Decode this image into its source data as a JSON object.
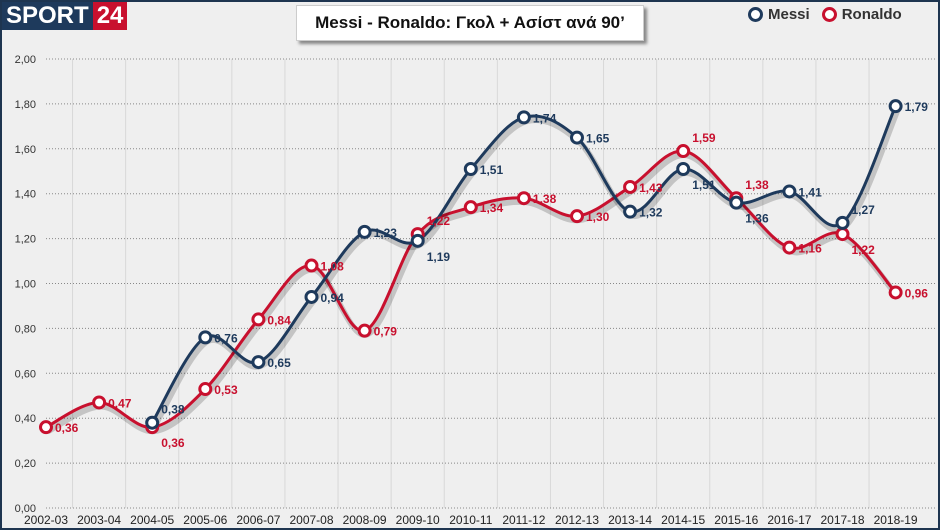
{
  "brand": {
    "part1": "SPORT",
    "part2": "24"
  },
  "chart_data": {
    "type": "line",
    "title": "Messi - Ronaldo: Γκολ + Ασίστ ανά 90’",
    "xlabel": "",
    "ylabel": "",
    "ylim": [
      0,
      2
    ],
    "yticks": [
      "0,00",
      "0,20",
      "0,40",
      "0,60",
      "0,80",
      "1,00",
      "1,20",
      "1,40",
      "1,60",
      "1,80",
      "2,00"
    ],
    "categories": [
      "2002-03",
      "2003-04",
      "2004-05",
      "2005-06",
      "2006-07",
      "2007-08",
      "2008-09",
      "2009-10",
      "2010-11",
      "2011-12",
      "2012-13",
      "2013-14",
      "2014-15",
      "2015-16",
      "2016-17",
      "2017-18",
      "2018-19"
    ],
    "legend_position": "top-right",
    "grid": true,
    "series": [
      {
        "name": "Messi",
        "color": "#1e3a5c",
        "values": [
          null,
          null,
          0.38,
          0.76,
          0.65,
          0.94,
          1.23,
          1.19,
          1.51,
          1.74,
          1.65,
          1.32,
          1.51,
          1.36,
          1.41,
          1.27,
          1.79
        ]
      },
      {
        "name": "Ronaldo",
        "color": "#c8102e",
        "values": [
          0.36,
          0.47,
          0.36,
          0.53,
          0.84,
          1.08,
          0.79,
          1.22,
          1.34,
          1.38,
          1.3,
          1.43,
          1.59,
          1.38,
          1.16,
          1.22,
          0.96
        ]
      }
    ]
  }
}
